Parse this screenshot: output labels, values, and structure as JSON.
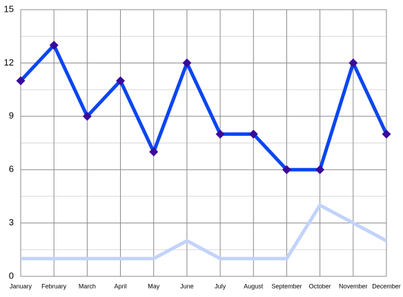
{
  "chart_data": {
    "type": "line",
    "categories": [
      "January",
      "February",
      "March",
      "April",
      "May",
      "June",
      "July",
      "August",
      "September",
      "October",
      "November",
      "December"
    ],
    "series": [
      {
        "color": "#0a46f0",
        "marker_color": "#3a0a9a",
        "markers": true,
        "values": [
          11,
          13,
          9,
          11,
          7,
          12,
          8,
          8,
          6,
          6,
          12,
          8
        ]
      },
      {
        "color": "#c2d3fb",
        "markers": false,
        "values": [
          1,
          1,
          1,
          1,
          1,
          2,
          1,
          1,
          1,
          4,
          3,
          2
        ]
      }
    ],
    "ylim": [
      0,
      15
    ],
    "yticks": [
      0,
      3,
      6,
      9,
      12,
      15
    ],
    "minor_yticks": [
      1.5,
      4.5,
      7.5,
      10.5,
      13.5
    ],
    "grid": true
  }
}
